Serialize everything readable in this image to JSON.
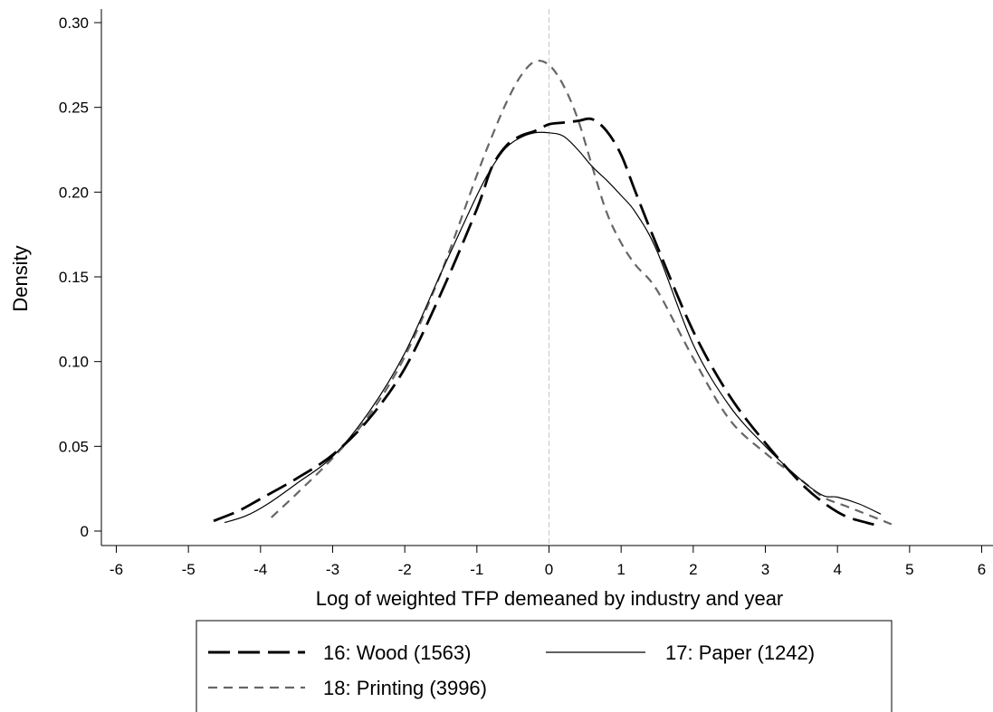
{
  "chart_data": {
    "type": "line",
    "title": "",
    "xlabel": "Log of weighted TFP demeaned by industry and year",
    "ylabel": "Density",
    "xlim": [
      -6.3,
      6.3
    ],
    "ylim": [
      -0.015,
      0.31
    ],
    "x_ticks": [
      -6,
      -5,
      -4,
      -3,
      -2,
      -1,
      0,
      1,
      2,
      3,
      4,
      5,
      6
    ],
    "x_tick_labels": [
      "-6",
      "-5",
      "-4",
      "-3",
      "-2",
      "-1",
      "0",
      "1",
      "2",
      "3",
      "4",
      "5",
      "6"
    ],
    "y_ticks": [
      0,
      0.05,
      0.1,
      0.15,
      0.2,
      0.25,
      0.3
    ],
    "y_tick_labels": [
      "0",
      "0.05",
      "0.10",
      "0.15",
      "0.20",
      "0.25",
      "0.30"
    ],
    "grid": false,
    "reference_line_x": 0,
    "legend_position": "bottom",
    "colors": {
      "wood": "#000000",
      "paper": "#000000",
      "printing": "#666666",
      "reference": "#c8c8c8"
    },
    "series": [
      {
        "name": "16: Wood (1563)",
        "style": "long-dash",
        "points": [
          [
            -4.65,
            0.006
          ],
          [
            -4.3,
            0.012
          ],
          [
            -4.0,
            0.019
          ],
          [
            -3.5,
            0.031
          ],
          [
            -3.0,
            0.045
          ],
          [
            -2.5,
            0.066
          ],
          [
            -2.0,
            0.096
          ],
          [
            -1.5,
            0.14
          ],
          [
            -1.0,
            0.19
          ],
          [
            -0.8,
            0.214
          ],
          [
            -0.6,
            0.227
          ],
          [
            -0.4,
            0.233
          ],
          [
            -0.2,
            0.236
          ],
          [
            0.0,
            0.24
          ],
          [
            0.2,
            0.241
          ],
          [
            0.4,
            0.242
          ],
          [
            0.6,
            0.243
          ],
          [
            0.8,
            0.236
          ],
          [
            1.0,
            0.222
          ],
          [
            1.2,
            0.2
          ],
          [
            1.5,
            0.168
          ],
          [
            2.0,
            0.118
          ],
          [
            2.5,
            0.08
          ],
          [
            3.0,
            0.052
          ],
          [
            3.5,
            0.028
          ],
          [
            3.8,
            0.017
          ],
          [
            4.1,
            0.009
          ],
          [
            4.4,
            0.005
          ],
          [
            4.6,
            0.003
          ]
        ]
      },
      {
        "name": "17: Paper (1242)",
        "style": "solid",
        "points": [
          [
            -4.5,
            0.005
          ],
          [
            -4.2,
            0.009
          ],
          [
            -3.9,
            0.016
          ],
          [
            -3.5,
            0.028
          ],
          [
            -3.0,
            0.044
          ],
          [
            -2.5,
            0.07
          ],
          [
            -2.0,
            0.105
          ],
          [
            -1.5,
            0.152
          ],
          [
            -1.0,
            0.198
          ],
          [
            -0.8,
            0.214
          ],
          [
            -0.6,
            0.226
          ],
          [
            -0.4,
            0.232
          ],
          [
            -0.2,
            0.235
          ],
          [
            0.0,
            0.235
          ],
          [
            0.2,
            0.233
          ],
          [
            0.4,
            0.225
          ],
          [
            0.6,
            0.215
          ],
          [
            0.8,
            0.207
          ],
          [
            1.0,
            0.198
          ],
          [
            1.2,
            0.188
          ],
          [
            1.5,
            0.165
          ],
          [
            2.0,
            0.11
          ],
          [
            2.5,
            0.074
          ],
          [
            3.0,
            0.05
          ],
          [
            3.5,
            0.03
          ],
          [
            3.8,
            0.021
          ],
          [
            4.0,
            0.02
          ],
          [
            4.3,
            0.016
          ],
          [
            4.6,
            0.01
          ]
        ]
      },
      {
        "name": "18: Printing (3996)",
        "style": "short-dash",
        "points": [
          [
            -3.85,
            0.008
          ],
          [
            -3.5,
            0.022
          ],
          [
            -3.0,
            0.043
          ],
          [
            -2.5,
            0.068
          ],
          [
            -2.0,
            0.103
          ],
          [
            -1.5,
            0.152
          ],
          [
            -1.0,
            0.21
          ],
          [
            -0.8,
            0.232
          ],
          [
            -0.6,
            0.252
          ],
          [
            -0.4,
            0.268
          ],
          [
            -0.2,
            0.277
          ],
          [
            0.0,
            0.275
          ],
          [
            0.2,
            0.263
          ],
          [
            0.4,
            0.243
          ],
          [
            0.6,
            0.215
          ],
          [
            0.8,
            0.188
          ],
          [
            1.0,
            0.17
          ],
          [
            1.2,
            0.157
          ],
          [
            1.5,
            0.142
          ],
          [
            2.0,
            0.102
          ],
          [
            2.5,
            0.066
          ],
          [
            3.0,
            0.046
          ],
          [
            3.5,
            0.03
          ],
          [
            3.8,
            0.02
          ],
          [
            4.1,
            0.015
          ],
          [
            4.4,
            0.01
          ],
          [
            4.75,
            0.004
          ]
        ]
      }
    ]
  }
}
